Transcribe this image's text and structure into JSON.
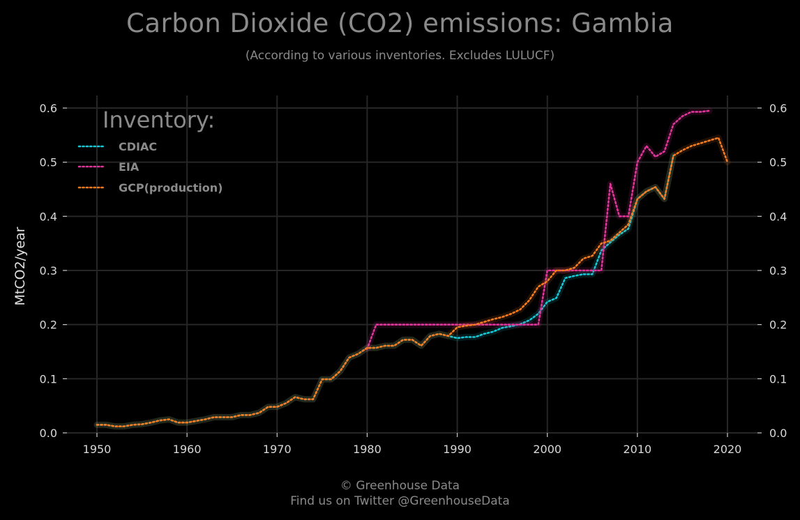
{
  "page": {
    "title": "Carbon Dioxide (CO2) emissions: Gambia",
    "subtitle": "(According to various inventories. Excludes LULUCF)",
    "footer_line1": "© Greenhouse Data",
    "footer_line2": "Find us on Twitter @GreenhouseData"
  },
  "chart_data": {
    "type": "line",
    "title": "Carbon Dioxide (CO2) emissions: Gambia",
    "subtitle": "(According to various inventories. Excludes LULUCF)",
    "xlabel": "",
    "ylabel": "MtCO2/year",
    "xlim": [
      1947,
      2023
    ],
    "ylim": [
      0,
      0.62
    ],
    "x_ticks": [
      1950,
      1960,
      1970,
      1980,
      1990,
      2000,
      2010,
      2020
    ],
    "y_ticks": [
      0.0,
      0.1,
      0.2,
      0.3,
      0.4,
      0.5,
      0.6
    ],
    "y_axis_both_sides": true,
    "grid": true,
    "legend_title": "Inventory:",
    "legend_position": "top-left",
    "line_style": "dotted",
    "colors": {
      "background": "#000000",
      "grid": "#262626",
      "text": "#8a8a8a",
      "ticks": "#d8d8d8"
    },
    "series": [
      {
        "name": "CDIAC",
        "color": "#17c8d6",
        "x": [
          1950,
          1951,
          1952,
          1953,
          1954,
          1955,
          1956,
          1957,
          1958,
          1959,
          1960,
          1961,
          1962,
          1963,
          1964,
          1965,
          1966,
          1967,
          1968,
          1969,
          1970,
          1971,
          1972,
          1973,
          1974,
          1975,
          1976,
          1977,
          1978,
          1979,
          1980,
          1981,
          1982,
          1983,
          1984,
          1985,
          1986,
          1987,
          1988,
          1989,
          1990,
          1991,
          1992,
          1993,
          1994,
          1995,
          1996,
          1997,
          1998,
          1999,
          2000,
          2001,
          2002,
          2003,
          2004,
          2005,
          2006,
          2007,
          2008,
          2009,
          2010,
          2011,
          2012,
          2013,
          2014
        ],
        "y": [
          0.015,
          0.015,
          0.012,
          0.012,
          0.015,
          0.016,
          0.019,
          0.023,
          0.025,
          0.019,
          0.019,
          0.022,
          0.025,
          0.029,
          0.029,
          0.029,
          0.033,
          0.033,
          0.037,
          0.048,
          0.048,
          0.055,
          0.066,
          0.062,
          0.062,
          0.099,
          0.099,
          0.114,
          0.139,
          0.146,
          0.157,
          0.157,
          0.161,
          0.161,
          0.172,
          0.172,
          0.161,
          0.179,
          0.183,
          0.179,
          0.175,
          0.177,
          0.177,
          0.183,
          0.187,
          0.194,
          0.197,
          0.201,
          0.208,
          0.22,
          0.242,
          0.249,
          0.286,
          0.29,
          0.293,
          0.293,
          0.337,
          0.352,
          0.366,
          0.377,
          0.432,
          0.446,
          0.454,
          0.432,
          0.512
        ]
      },
      {
        "name": "EIA",
        "color": "#e0359a",
        "x": [
          1980,
          1981,
          1982,
          1983,
          1984,
          1985,
          1986,
          1987,
          1988,
          1989,
          1990,
          1991,
          1992,
          1993,
          1994,
          1995,
          1996,
          1997,
          1998,
          1999,
          2000,
          2001,
          2002,
          2003,
          2004,
          2005,
          2006,
          2007,
          2008,
          2009,
          2010,
          2011,
          2012,
          2013,
          2014,
          2015,
          2016,
          2017,
          2018
        ],
        "y": [
          0.155,
          0.2,
          0.2,
          0.2,
          0.2,
          0.2,
          0.2,
          0.2,
          0.2,
          0.2,
          0.2,
          0.2,
          0.2,
          0.2,
          0.2,
          0.2,
          0.2,
          0.2,
          0.2,
          0.2,
          0.3,
          0.3,
          0.3,
          0.3,
          0.3,
          0.3,
          0.3,
          0.46,
          0.4,
          0.4,
          0.5,
          0.53,
          0.51,
          0.52,
          0.57,
          0.585,
          0.593,
          0.593,
          0.595
        ]
      },
      {
        "name": "GCP(production)",
        "color": "#f47b20",
        "x": [
          1950,
          1951,
          1952,
          1953,
          1954,
          1955,
          1956,
          1957,
          1958,
          1959,
          1960,
          1961,
          1962,
          1963,
          1964,
          1965,
          1966,
          1967,
          1968,
          1969,
          1970,
          1971,
          1972,
          1973,
          1974,
          1975,
          1976,
          1977,
          1978,
          1979,
          1980,
          1981,
          1982,
          1983,
          1984,
          1985,
          1986,
          1987,
          1988,
          1989,
          1990,
          1991,
          1992,
          1993,
          1994,
          1995,
          1996,
          1997,
          1998,
          1999,
          2000,
          2001,
          2002,
          2003,
          2004,
          2005,
          2006,
          2007,
          2008,
          2009,
          2010,
          2011,
          2012,
          2013,
          2014,
          2015,
          2016,
          2017,
          2018,
          2019,
          2020
        ],
        "y": [
          0.015,
          0.015,
          0.012,
          0.012,
          0.015,
          0.016,
          0.019,
          0.023,
          0.025,
          0.019,
          0.019,
          0.022,
          0.025,
          0.029,
          0.029,
          0.029,
          0.033,
          0.033,
          0.037,
          0.048,
          0.048,
          0.055,
          0.066,
          0.062,
          0.062,
          0.099,
          0.099,
          0.114,
          0.139,
          0.146,
          0.157,
          0.157,
          0.161,
          0.161,
          0.172,
          0.172,
          0.161,
          0.179,
          0.183,
          0.179,
          0.195,
          0.198,
          0.2,
          0.205,
          0.21,
          0.214,
          0.22,
          0.228,
          0.245,
          0.27,
          0.28,
          0.3,
          0.3,
          0.305,
          0.322,
          0.327,
          0.35,
          0.355,
          0.37,
          0.385,
          0.432,
          0.446,
          0.454,
          0.432,
          0.512,
          0.522,
          0.53,
          0.535,
          0.54,
          0.545,
          0.5
        ]
      }
    ]
  }
}
